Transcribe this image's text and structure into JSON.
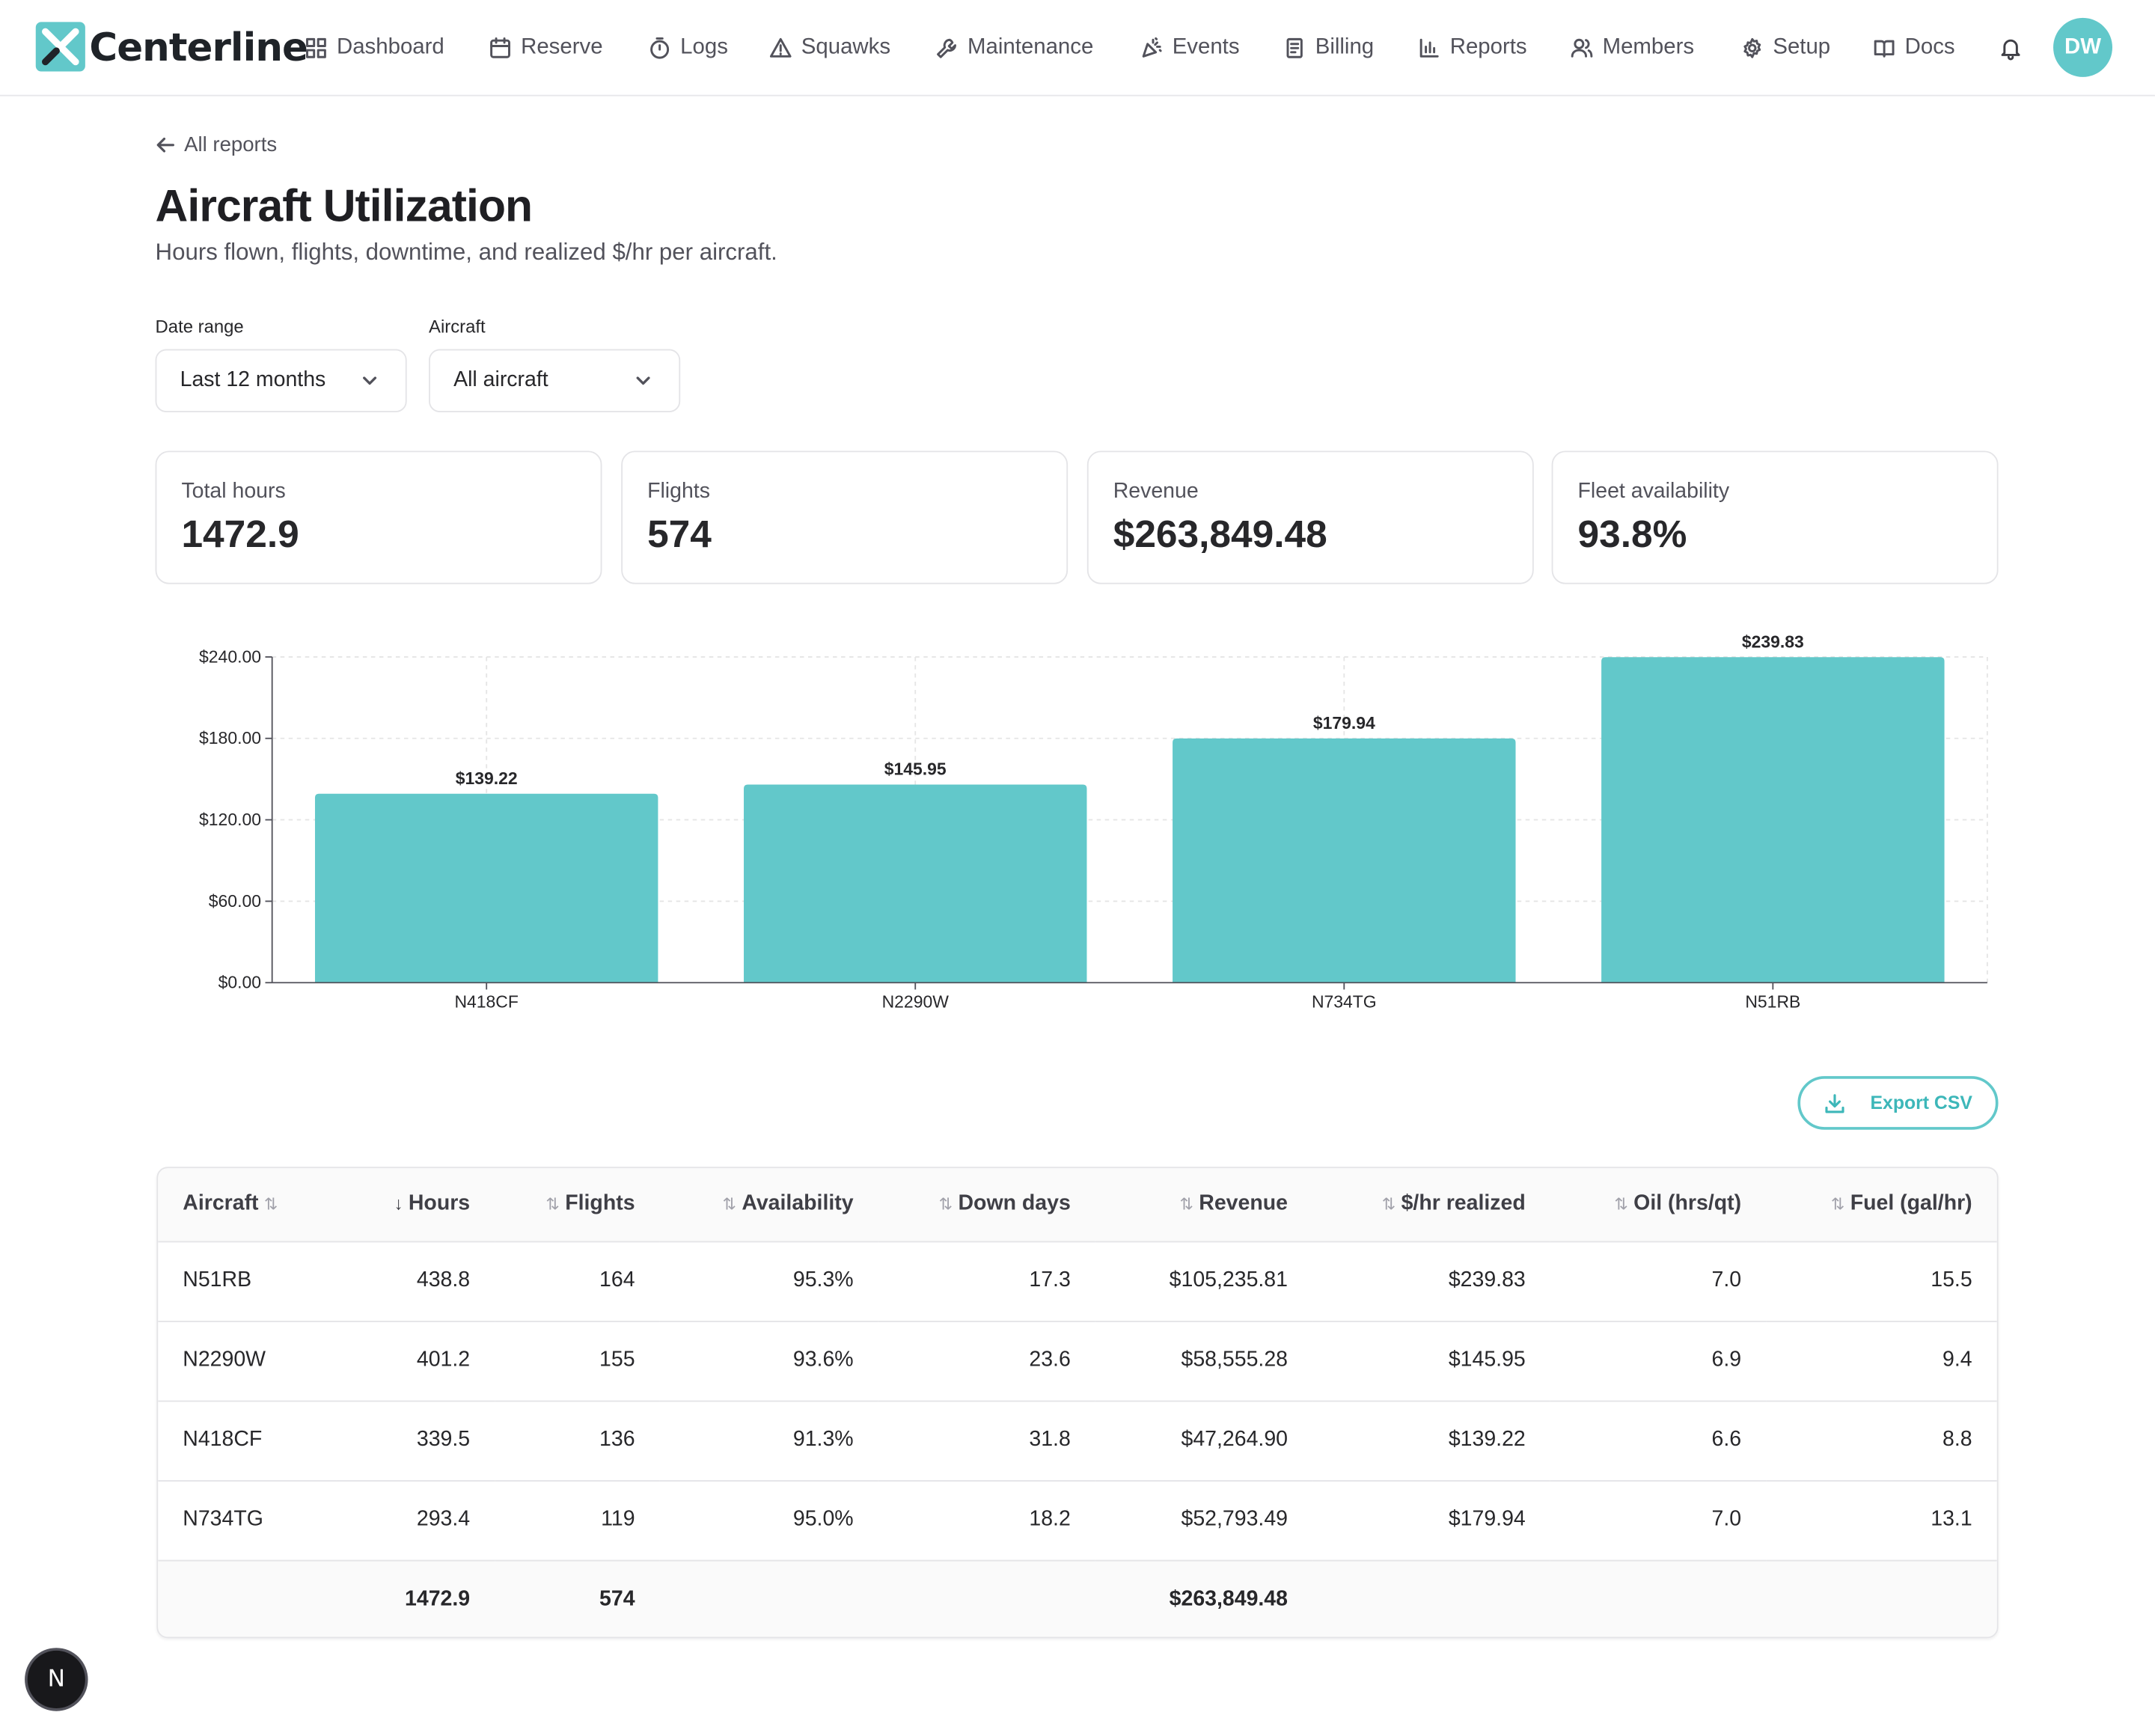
{
  "brand": {
    "name": "Centerline"
  },
  "nav": [
    {
      "label": "Dashboard",
      "icon": "grid-icon"
    },
    {
      "label": "Reserve",
      "icon": "calendar-icon"
    },
    {
      "label": "Logs",
      "icon": "timer-icon"
    },
    {
      "label": "Squawks",
      "icon": "warning-icon"
    },
    {
      "label": "Maintenance",
      "icon": "wrench-icon"
    },
    {
      "label": "Events",
      "icon": "party-popper-icon"
    },
    {
      "label": "Billing",
      "icon": "receipt-icon"
    },
    {
      "label": "Reports",
      "icon": "bar-chart-icon"
    },
    {
      "label": "Members",
      "icon": "users-icon"
    },
    {
      "label": "Setup",
      "icon": "gear-icon"
    },
    {
      "label": "Docs",
      "icon": "book-icon"
    }
  ],
  "user": {
    "initials": "DW"
  },
  "page": {
    "back_label": "All reports",
    "title": "Aircraft Utilization",
    "subtitle": "Hours flown, flights, downtime, and realized $/hr per aircraft."
  },
  "filters": {
    "date_range": {
      "label": "Date range",
      "value": "Last 12 months"
    },
    "aircraft": {
      "label": "Aircraft",
      "value": "All aircraft"
    }
  },
  "stats": [
    {
      "label": "Total hours",
      "value": "1472.9"
    },
    {
      "label": "Flights",
      "value": "574"
    },
    {
      "label": "Revenue",
      "value": "$263,849.48"
    },
    {
      "label": "Fleet availability",
      "value": "93.8%"
    }
  ],
  "chart_data": {
    "type": "bar",
    "categories": [
      "N418CF",
      "N2290W",
      "N734TG",
      "N51RB"
    ],
    "values": [
      139.22,
      145.95,
      179.94,
      239.83
    ],
    "data_labels": [
      "$139.22",
      "$145.95",
      "$179.94",
      "$239.83"
    ],
    "y_ticks": [
      "$0.00",
      "$60.00",
      "$120.00",
      "$180.00",
      "$240.00"
    ],
    "ylim": [
      0,
      240
    ],
    "grid": true,
    "bar_color": "#62c8ca"
  },
  "export_label": "Export CSV",
  "table": {
    "columns": [
      "Aircraft",
      "Hours",
      "Flights",
      "Availability",
      "Down days",
      "Revenue",
      "$/hr realized",
      "Oil (hrs/qt)",
      "Fuel (gal/hr)"
    ],
    "rows": [
      [
        "N51RB",
        "438.8",
        "164",
        "95.3%",
        "17.3",
        "$105,235.81",
        "$239.83",
        "7.0",
        "15.5"
      ],
      [
        "N2290W",
        "401.2",
        "155",
        "93.6%",
        "23.6",
        "$58,555.28",
        "$145.95",
        "6.9",
        "9.4"
      ],
      [
        "N418CF",
        "339.5",
        "136",
        "91.3%",
        "31.8",
        "$47,264.90",
        "$139.22",
        "6.6",
        "8.8"
      ],
      [
        "N734TG",
        "293.4",
        "119",
        "95.0%",
        "18.2",
        "$52,793.49",
        "$179.94",
        "7.0",
        "13.1"
      ]
    ],
    "totals": {
      "hours": "1472.9",
      "flights": "574",
      "revenue": "$263,849.48"
    }
  },
  "dev_badge": "N",
  "colors": {
    "accent": "#62c8ca"
  }
}
